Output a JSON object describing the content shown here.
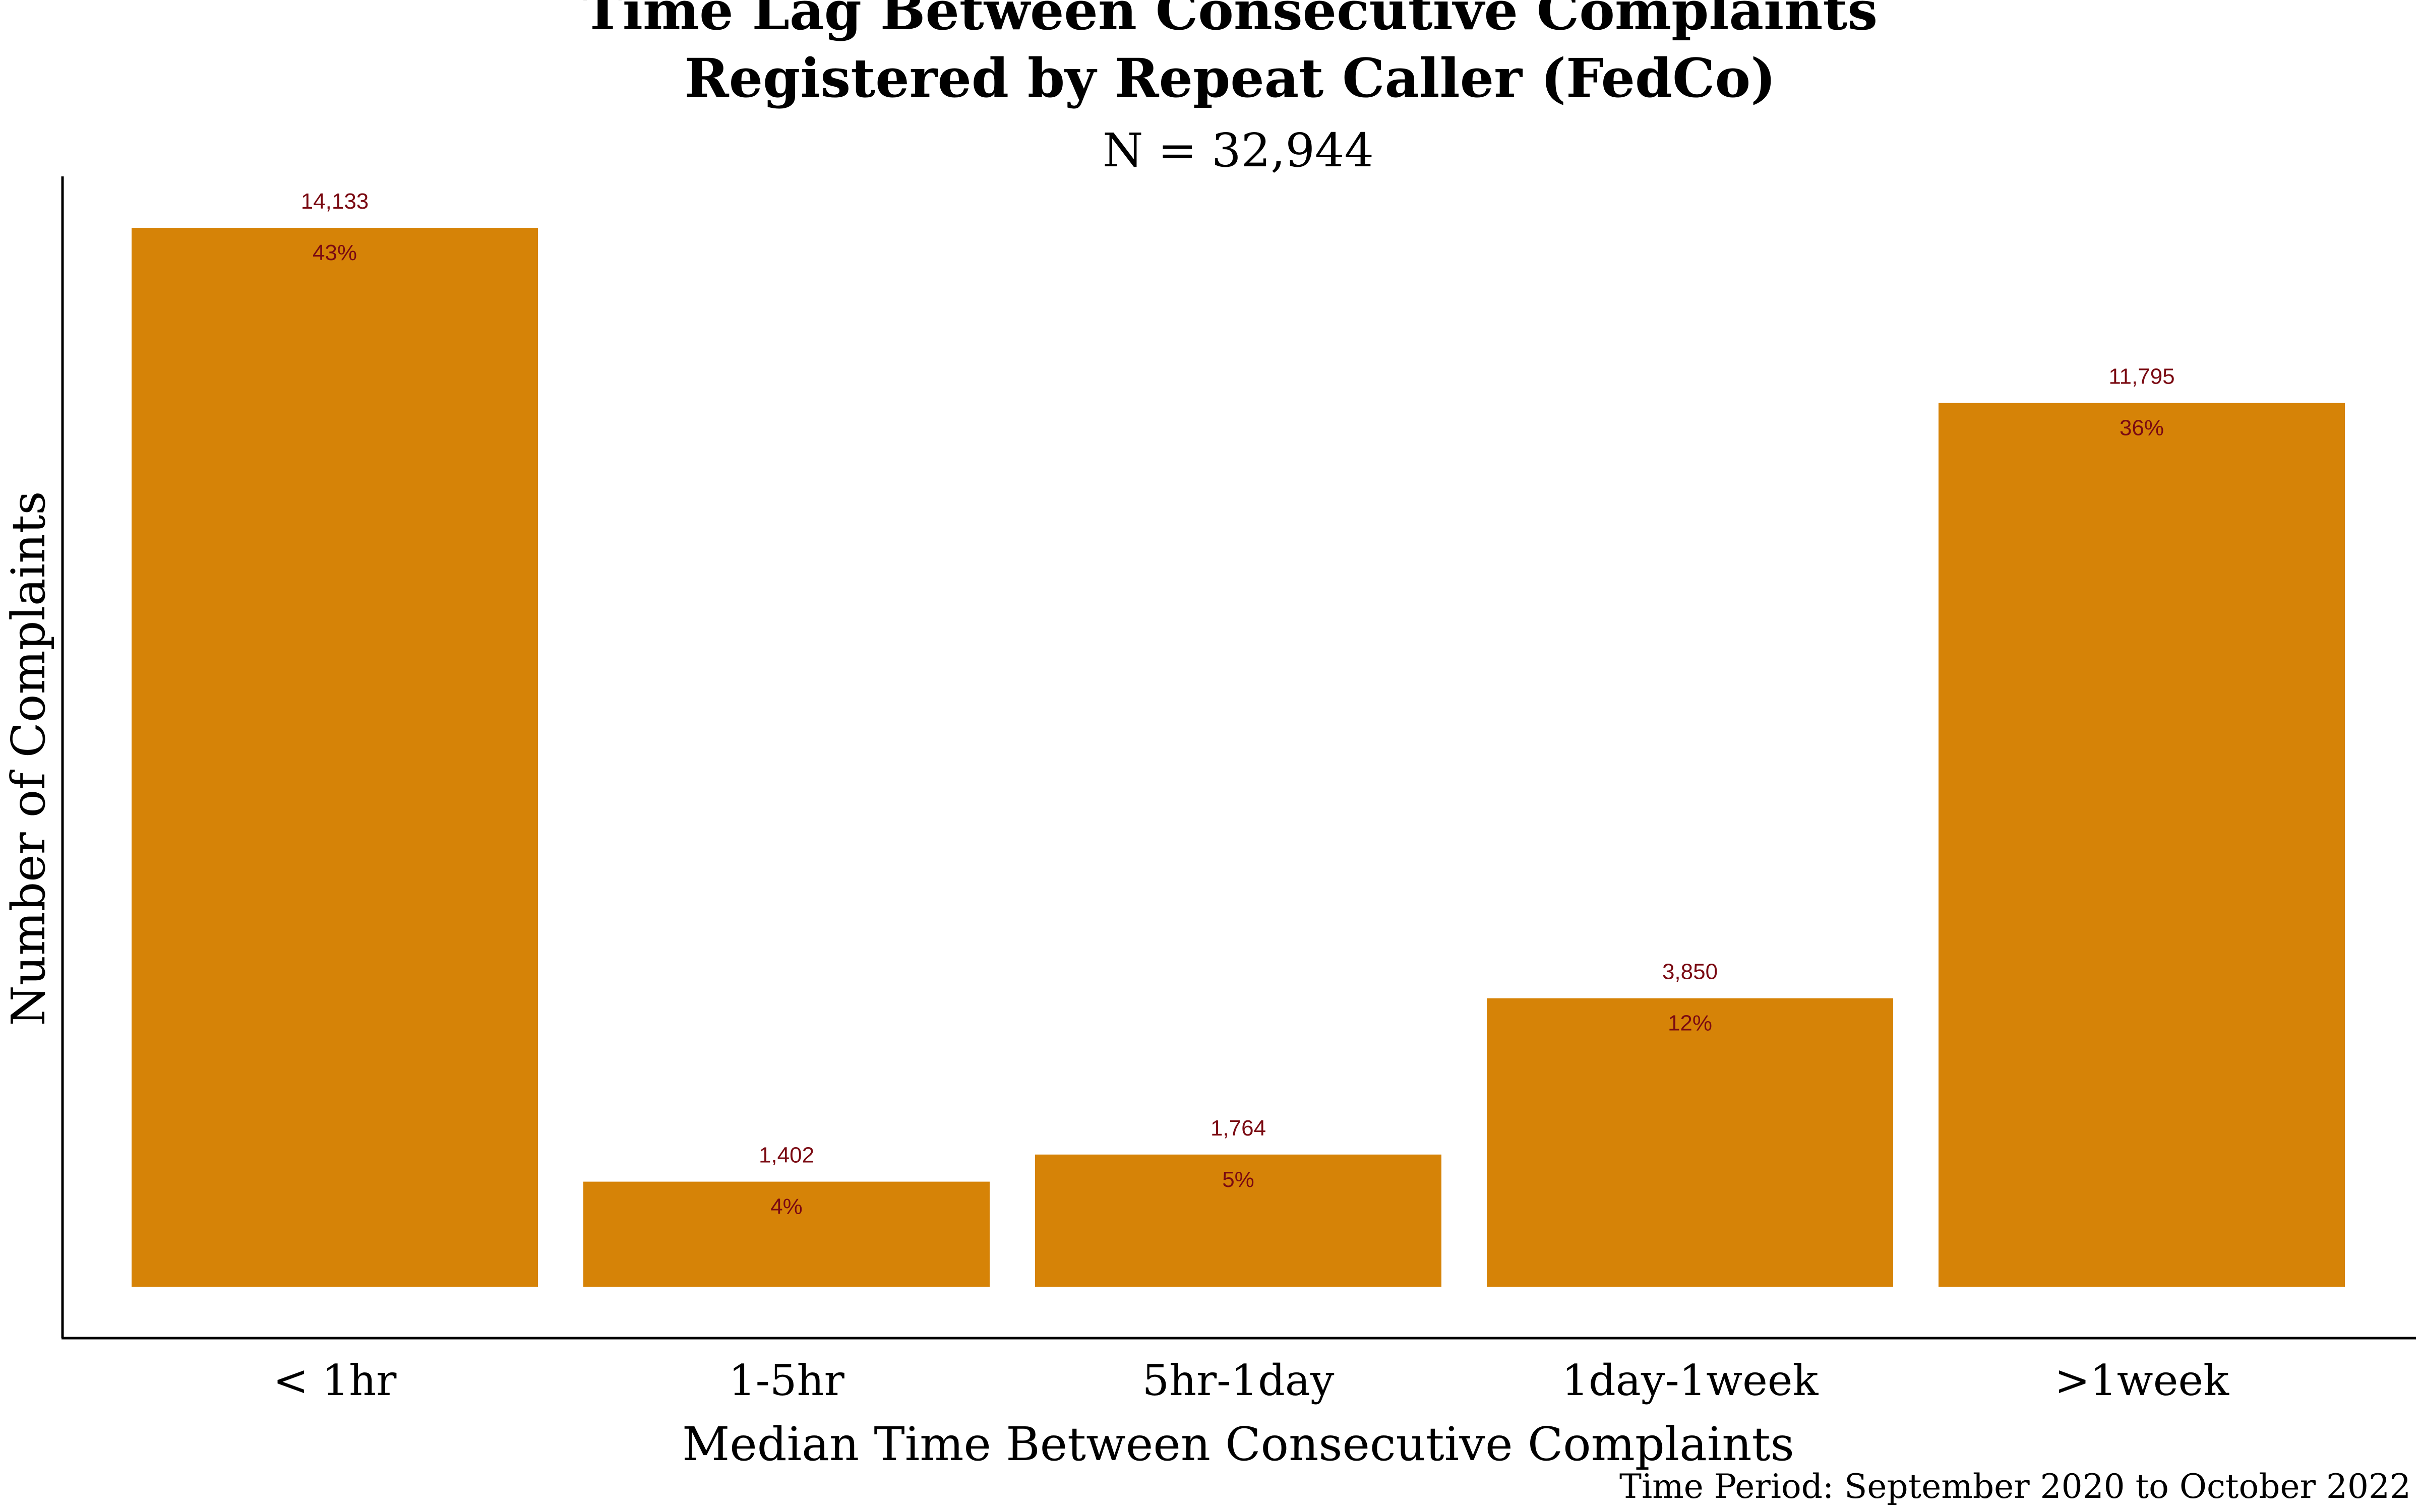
{
  "chart_data": {
    "type": "bar",
    "title_line1": "Time Lag Between Consecutive Complaints",
    "title_line2": "Registered by Repeat Caller (FedCo)",
    "subtitle": "N = 32,944",
    "xlabel": "Median Time Between Consecutive Complaints",
    "ylabel": "Number of Complaints",
    "caption": "Time Period: September 2020 to October 2022",
    "categories": [
      "< 1hr",
      "1-5hr",
      "5hr-1day",
      "1day-1week",
      ">1week"
    ],
    "values": [
      14133,
      1402,
      1764,
      3850,
      11795
    ],
    "value_labels": [
      "14,133",
      "1,402",
      "1,764",
      "3,850",
      "11,795"
    ],
    "percent_labels": [
      "43%",
      "4%",
      "5%",
      "12%",
      "36%"
    ],
    "ylim": [
      0,
      14133
    ],
    "grid": false,
    "y_ticks_shown": false,
    "colors": {
      "bar": "#d68307",
      "label": "#7a0a12",
      "axis": "#000000",
      "text": "#000000"
    }
  }
}
